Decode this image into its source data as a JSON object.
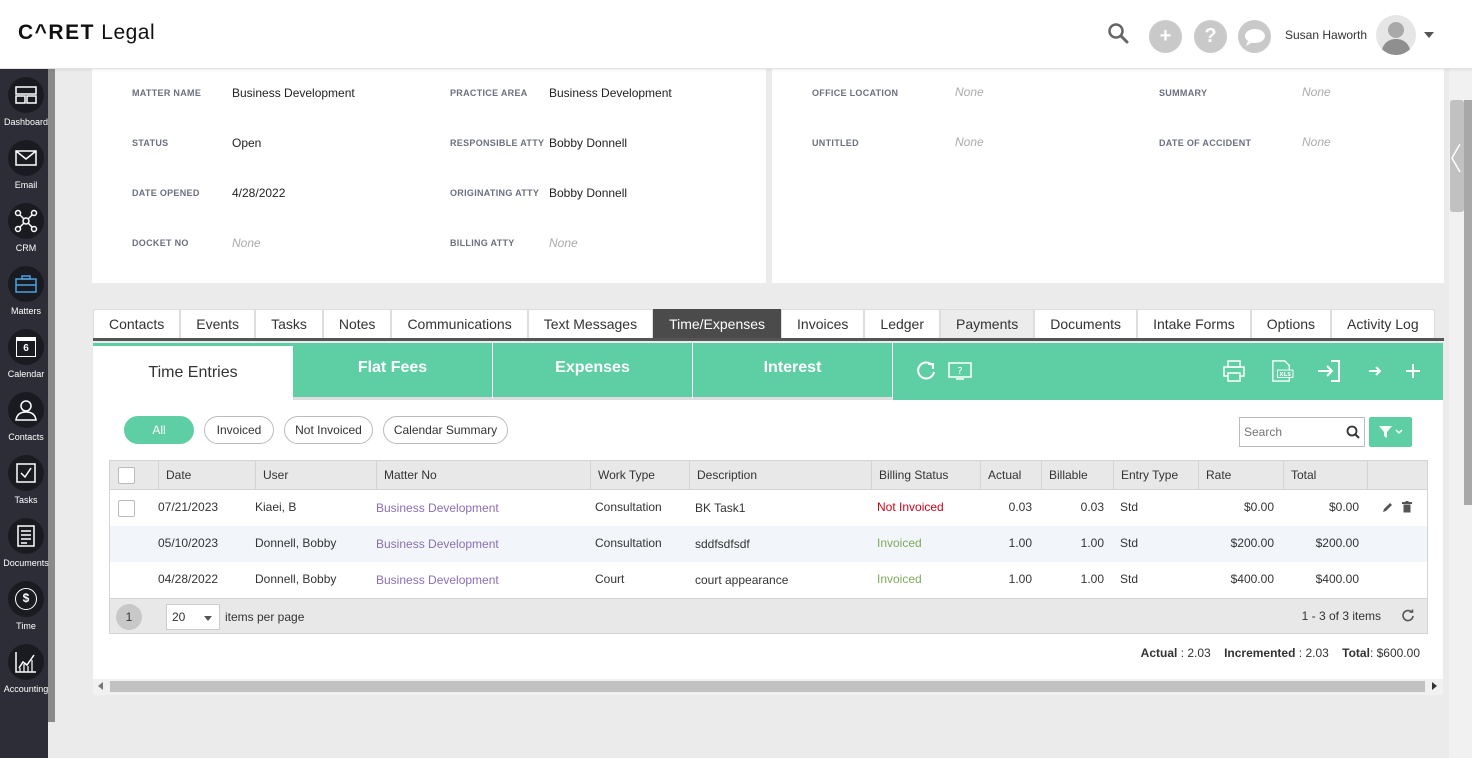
{
  "header": {
    "logo_prefix": "C^RET",
    "logo_suffix": " Legal",
    "user_name": "Susan Haworth",
    "plus_glyph": "+",
    "help_glyph": "?"
  },
  "nav": [
    {
      "label": "Dashboard",
      "icon": "dashboard-icon"
    },
    {
      "label": "Email",
      "icon": "envelope-icon"
    },
    {
      "label": "CRM",
      "icon": "network-icon"
    },
    {
      "label": "Matters",
      "icon": "briefcase-icon"
    },
    {
      "label": "Calendar",
      "icon": "calendar-icon",
      "day": "6"
    },
    {
      "label": "Contacts",
      "icon": "contacts-icon"
    },
    {
      "label": "Tasks",
      "icon": "tasks-icon"
    },
    {
      "label": "Documents",
      "icon": "documents-icon"
    },
    {
      "label": "Time",
      "icon": "stopwatch-icon",
      "glyph": "$"
    },
    {
      "label": "Accounting",
      "icon": "chart-icon"
    }
  ],
  "matter_info": {
    "left": [
      {
        "label": "MATTER NAME",
        "value": "Business Development"
      },
      {
        "label": "PRACTICE AREA",
        "value": "Business Development"
      },
      {
        "label": "STATUS",
        "value": "Open"
      },
      {
        "label": "RESPONSIBLE ATTY",
        "value": "Bobby Donnell"
      },
      {
        "label": "DATE OPENED",
        "value": "4/28/2022"
      },
      {
        "label": "ORIGINATING ATTY",
        "value": "Bobby Donnell"
      },
      {
        "label": "DOCKET NO",
        "value": "None"
      },
      {
        "label": "BILLING ATTY",
        "value": "None"
      }
    ],
    "right": [
      {
        "label": "OFFICE LOCATION",
        "value": "None"
      },
      {
        "label": "SUMMARY",
        "value": "None"
      },
      {
        "label": "UNTITLED",
        "value": "None"
      },
      {
        "label": "DATE OF ACCIDENT",
        "value": "None"
      }
    ]
  },
  "tabs": [
    "Contacts",
    "Events",
    "Tasks",
    "Notes",
    "Communications",
    "Text Messages",
    "Time/Expenses",
    "Invoices",
    "Ledger",
    "Payments",
    "Documents",
    "Intake Forms",
    "Options",
    "Activity Log"
  ],
  "active_tab": "Time/Expenses",
  "sub_tabs": [
    "Time Entries",
    "Flat Fees",
    "Expenses",
    "Interest"
  ],
  "filters": [
    "All",
    "Invoiced",
    "Not Invoiced",
    "Calendar Summary"
  ],
  "search": {
    "placeholder": "Search"
  },
  "grid": {
    "columns": [
      "Date",
      "User",
      "Matter No",
      "Work Type",
      "Description",
      "Billing Status",
      "Actual",
      "Billable",
      "Entry Type",
      "Rate",
      "Total"
    ],
    "rows": [
      {
        "date": "07/21/2023",
        "user": "Kiaei, B",
        "matter": "Business Development",
        "work_type": "Consultation",
        "description": "BK Task1",
        "billing_status": "Not Invoiced",
        "actual": "0.03",
        "billable": "0.03",
        "entry_type": "Std",
        "rate": "$0.00",
        "total": "$0.00"
      },
      {
        "date": "05/10/2023",
        "user": "Donnell, Bobby",
        "matter": "Business Development",
        "work_type": "Consultation",
        "description": "sddfsdfsdf",
        "billing_status": "Invoiced",
        "actual": "1.00",
        "billable": "1.00",
        "entry_type": "Std",
        "rate": "$200.00",
        "total": "$200.00"
      },
      {
        "date": "04/28/2022",
        "user": "Donnell, Bobby",
        "matter": "Business Development",
        "work_type": "Court",
        "description": "court appearance",
        "billing_status": "Invoiced",
        "actual": "1.00",
        "billable": "1.00",
        "entry_type": "Std",
        "rate": "$400.00",
        "total": "$400.00"
      }
    ]
  },
  "pager": {
    "page": "1",
    "page_size": "20",
    "items_label": "items per page",
    "count_text": "1 - 3 of 3 items"
  },
  "totals": {
    "actual_label": "Actual",
    "actual": "2.03",
    "incremented_label": "Incremented",
    "incremented": "2.03",
    "total_label": "Total",
    "total": "$600.00"
  },
  "colors": {
    "accent": "#5ecfa5",
    "nav_bg": "#2c2d36",
    "not_invoiced": "#d0021b",
    "invoiced": "#7dab5e",
    "link": "#8a6fb5"
  }
}
